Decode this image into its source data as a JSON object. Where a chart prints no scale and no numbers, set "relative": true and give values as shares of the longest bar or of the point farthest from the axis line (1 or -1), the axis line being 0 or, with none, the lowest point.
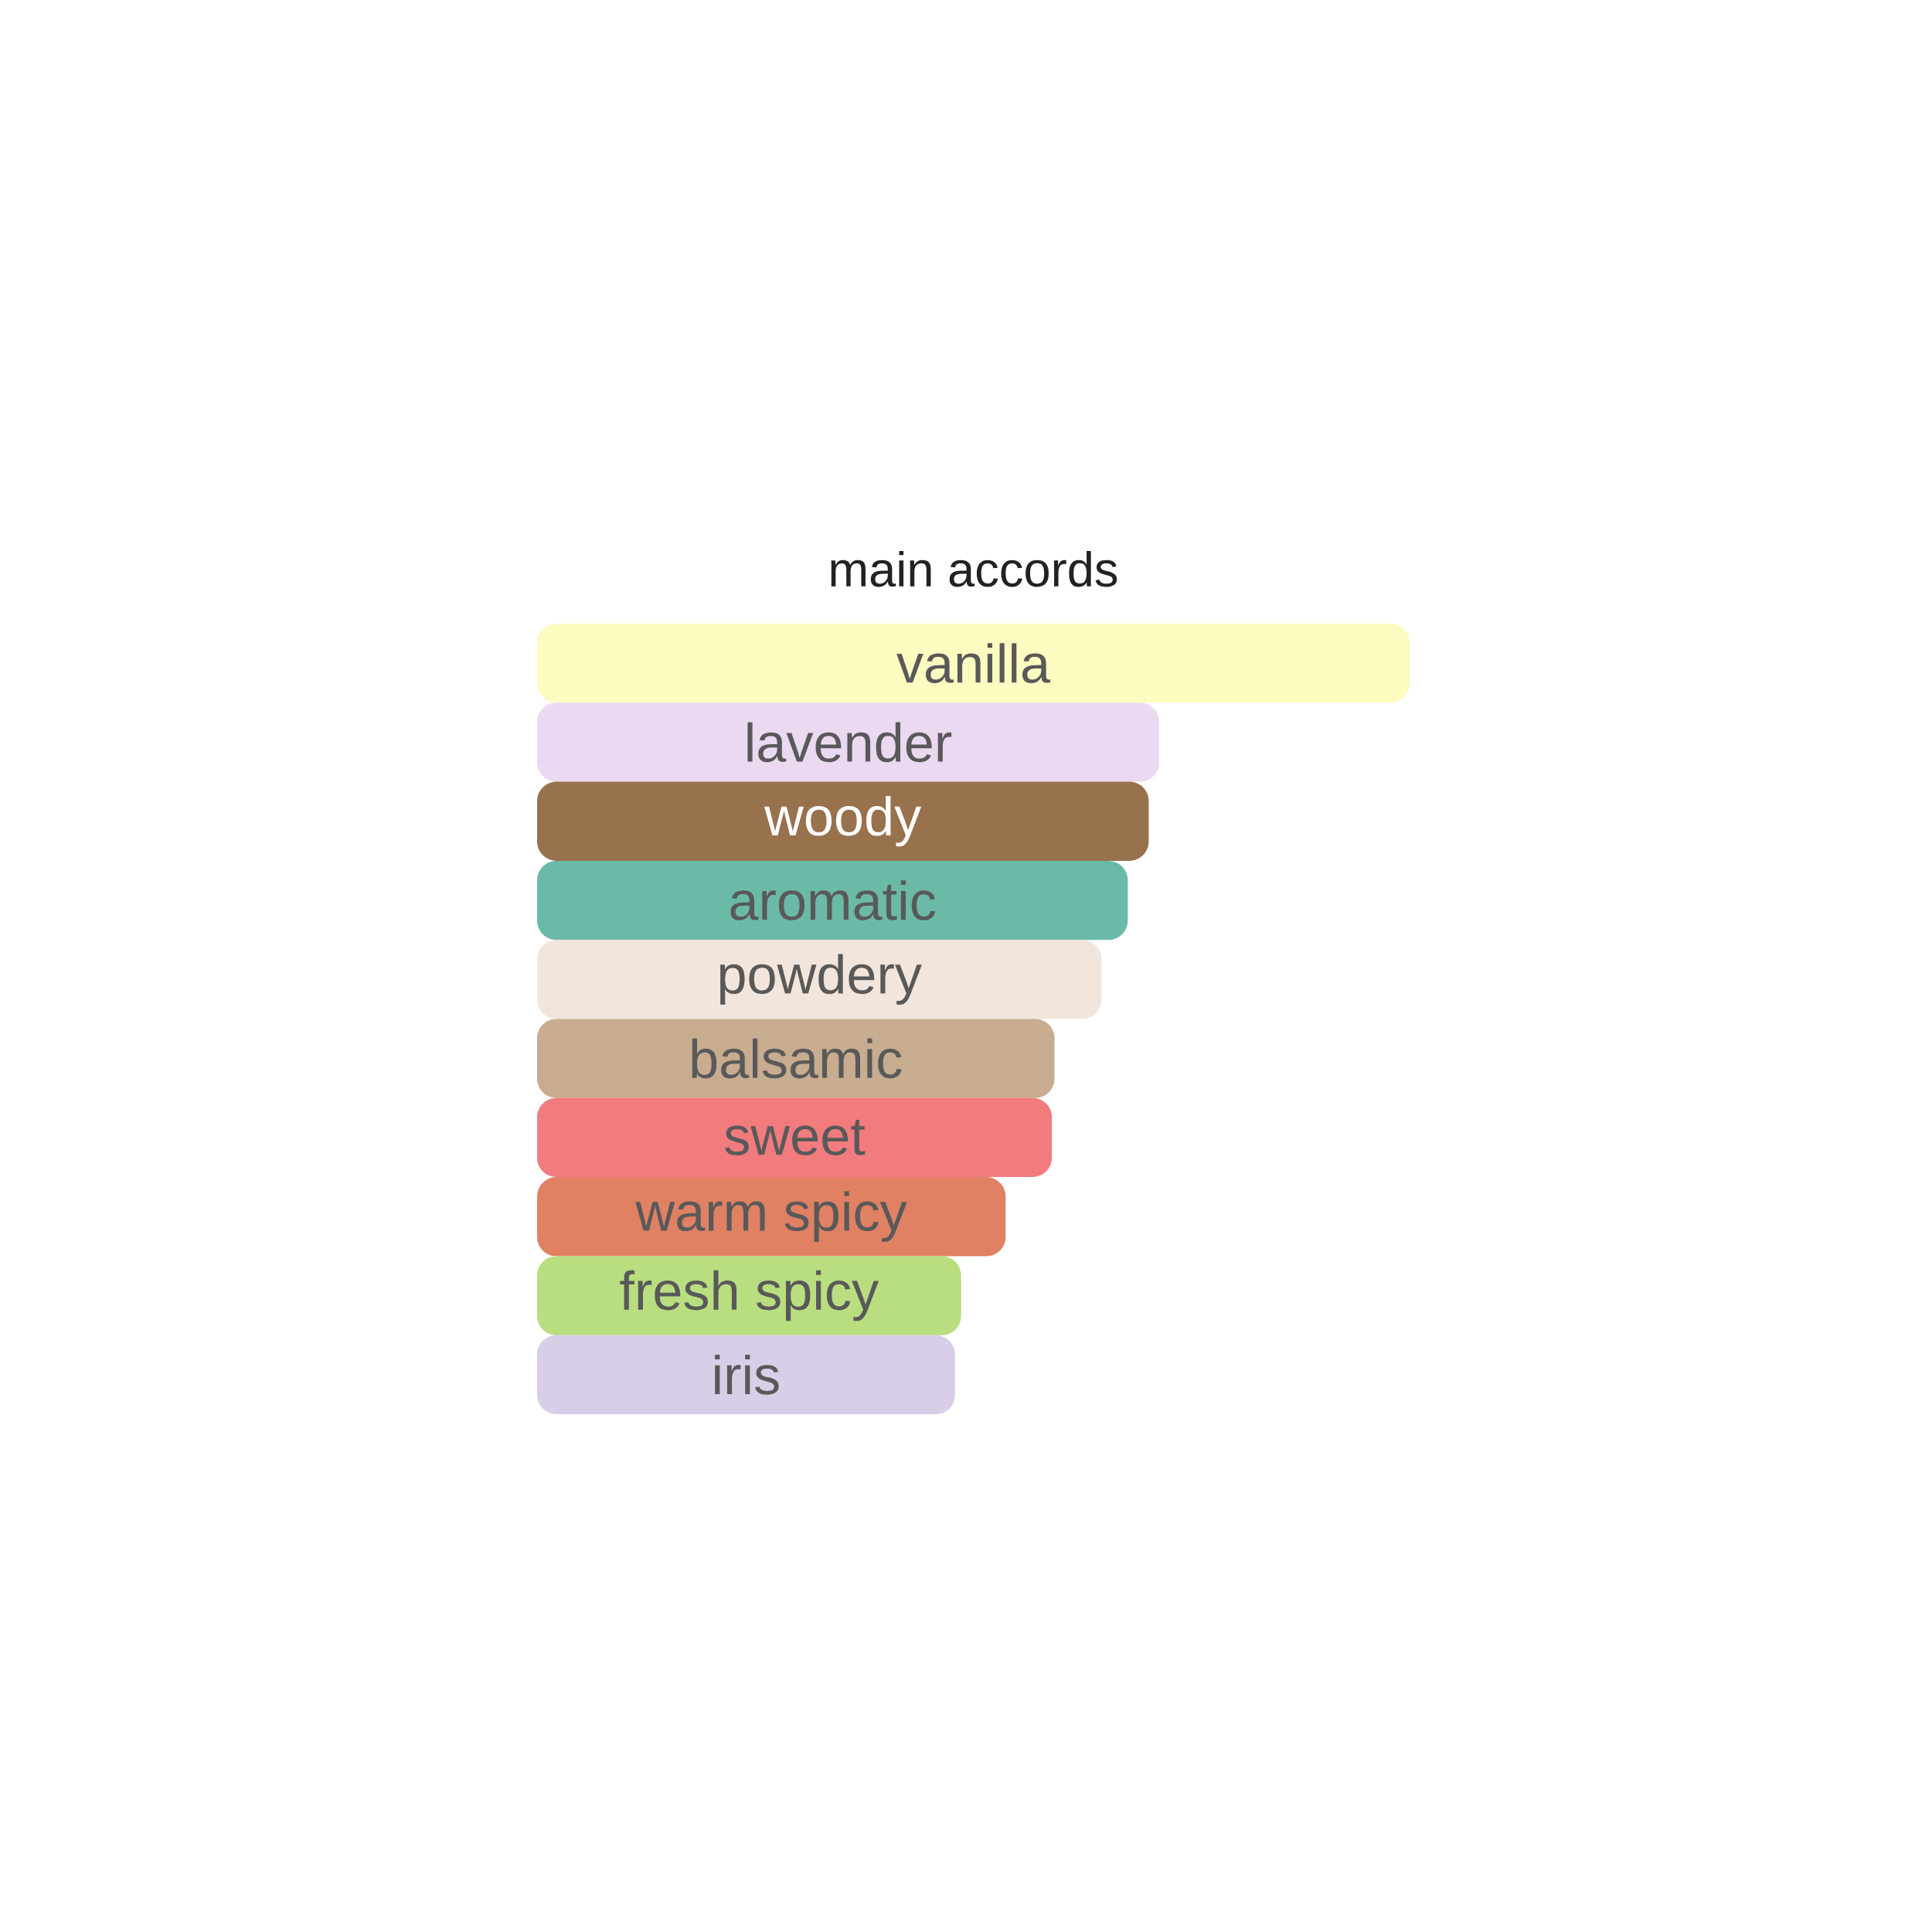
{
  "chart_data": {
    "type": "bar",
    "orientation": "horizontal",
    "relative": true,
    "title": "main accords",
    "categories": [
      "vanilla",
      "lavender",
      "woody",
      "aromatic",
      "powdery",
      "balsamic",
      "sweet",
      "warm spicy",
      "fresh spicy",
      "iris"
    ],
    "values": [
      1,
      0.713,
      0.701,
      0.677,
      0.647,
      0.593,
      0.59,
      0.537,
      0.486,
      0.479
    ],
    "colors": [
      "#fcfbc0",
      "#ead9f0",
      "#98714d",
      "#6bbaa7",
      "#f2e6dc",
      "#c8ac90",
      "#f27b7e",
      "#e08163",
      "#b8de80",
      "#d8cee8"
    ],
    "data_labels": false
  }
}
